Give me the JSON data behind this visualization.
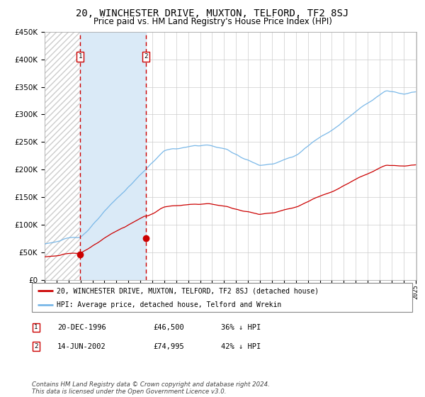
{
  "title": "20, WINCHESTER DRIVE, MUXTON, TELFORD, TF2 8SJ",
  "subtitle": "Price paid vs. HM Land Registry's House Price Index (HPI)",
  "x_start_year": 1994,
  "x_end_year": 2025,
  "ylim": [
    0,
    450000
  ],
  "yticks": [
    0,
    50000,
    100000,
    150000,
    200000,
    250000,
    300000,
    350000,
    400000,
    450000
  ],
  "ytick_labels": [
    "£0",
    "£50K",
    "£100K",
    "£150K",
    "£200K",
    "£250K",
    "£300K",
    "£350K",
    "£400K",
    "£450K"
  ],
  "sale1_year": 1996.97,
  "sale1_price": 46500,
  "sale1_label": "1",
  "sale1_date": "20-DEC-1996",
  "sale1_pct": "36% ↓ HPI",
  "sale2_year": 2002.45,
  "sale2_price": 74995,
  "sale2_label": "2",
  "sale2_date": "14-JUN-2002",
  "sale2_pct": "42% ↓ HPI",
  "hpi_color": "#7ab8e8",
  "price_color": "#cc0000",
  "shade_color": "#daeaf7",
  "grid_color": "#cccccc",
  "legend_label_price": "20, WINCHESTER DRIVE, MUXTON, TELFORD, TF2 8SJ (detached house)",
  "legend_label_hpi": "HPI: Average price, detached house, Telford and Wrekin",
  "footnote": "Contains HM Land Registry data © Crown copyright and database right 2024.\nThis data is licensed under the Open Government Licence v3.0.",
  "title_fontsize": 10,
  "subtitle_fontsize": 8.5
}
